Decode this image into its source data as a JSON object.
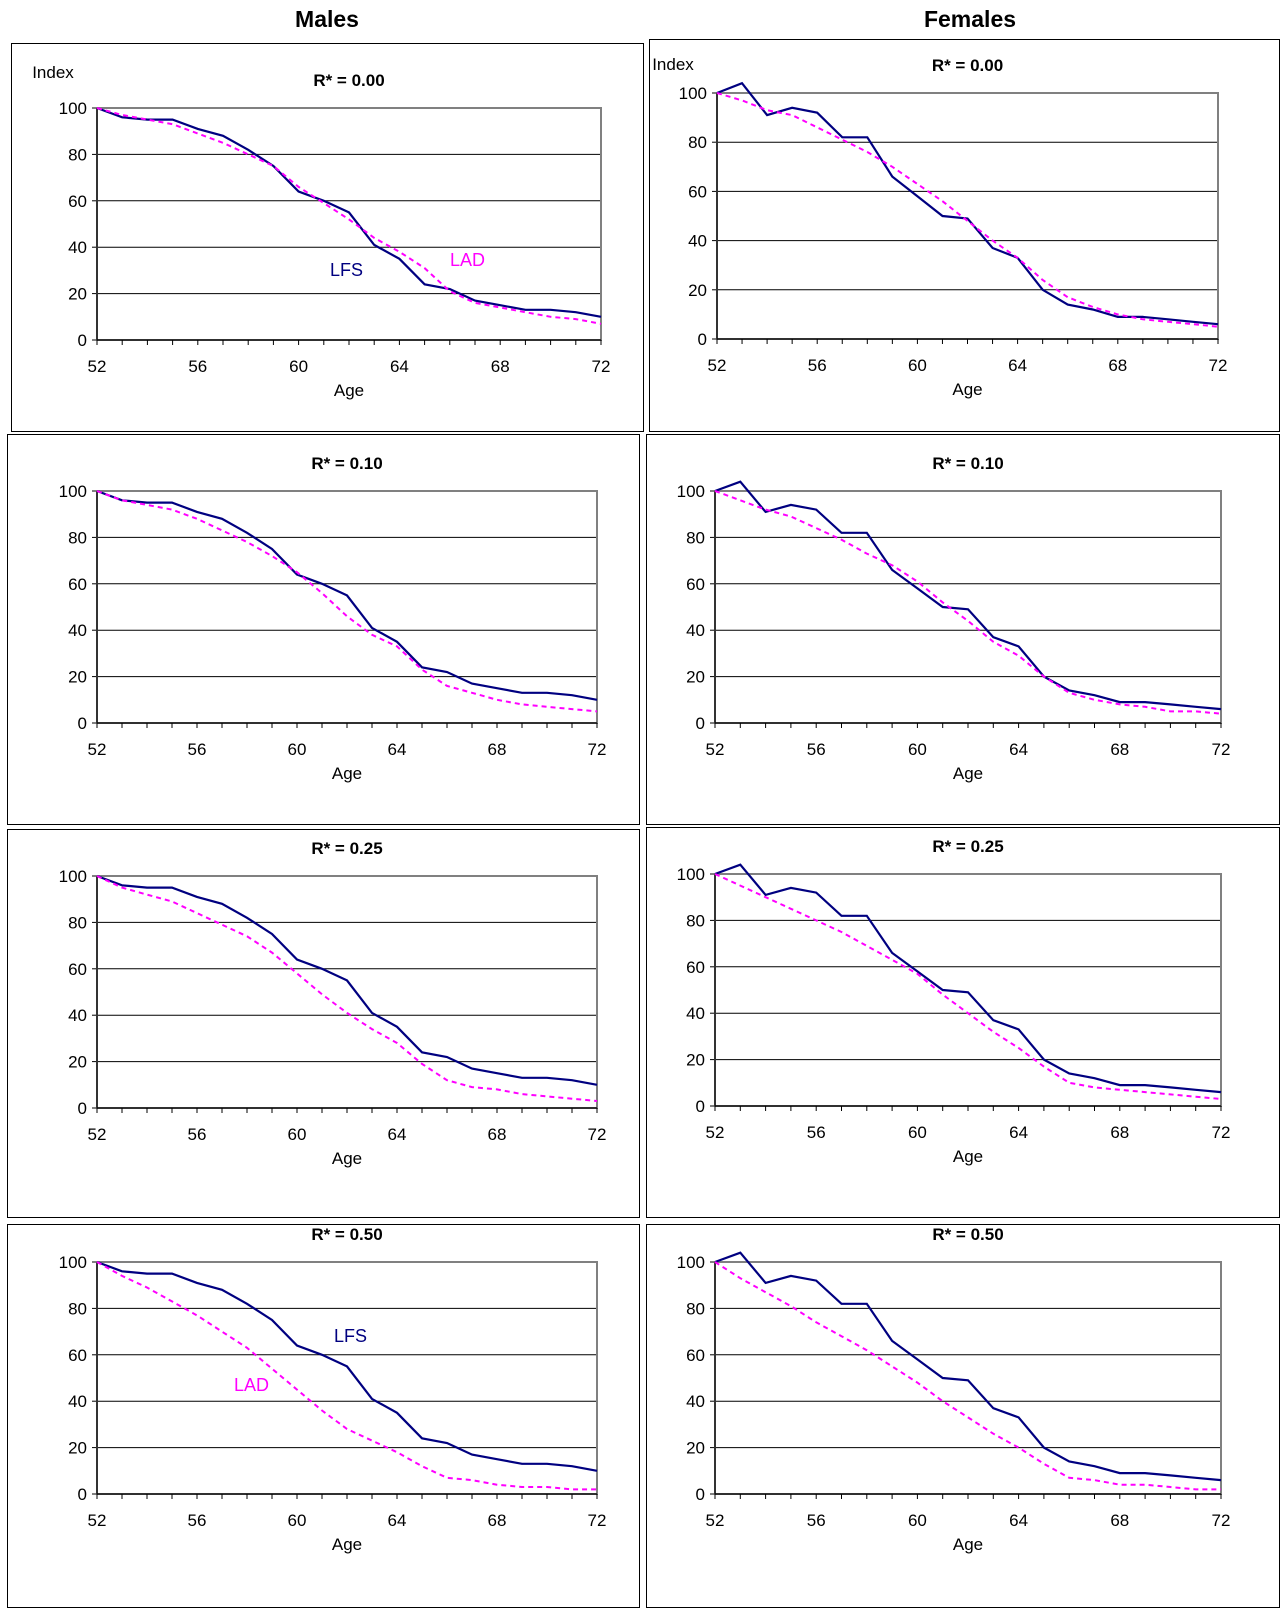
{
  "columns": {
    "left": "Males",
    "right": "Females"
  },
  "chart_data": [
    {
      "type": "line",
      "title": "R* = 0.00",
      "xlabel": "Age",
      "ylabel": "Index",
      "xlim": [
        52,
        72
      ],
      "ylim": [
        0,
        100
      ],
      "xticks": [
        52,
        56,
        60,
        64,
        68,
        72
      ],
      "yticks": [
        0,
        20,
        40,
        60,
        80,
        100
      ],
      "x": [
        52,
        53,
        54,
        55,
        56,
        57,
        58,
        59,
        60,
        61,
        62,
        63,
        64,
        65,
        66,
        67,
        68,
        69,
        70,
        71,
        72
      ],
      "series": [
        {
          "name": "LFS",
          "style": "solid",
          "color": "#000080",
          "values": [
            100,
            96,
            95,
            95,
            91,
            88,
            82,
            75,
            64,
            60,
            55,
            41,
            35,
            24,
            22,
            17,
            15,
            13,
            13,
            12,
            10
          ]
        },
        {
          "name": "LAD",
          "style": "dashed",
          "color": "#ff00ff",
          "values": [
            100,
            97,
            95,
            93,
            89,
            85,
            80,
            75,
            66,
            59,
            52,
            44,
            38,
            31,
            21,
            16,
            14,
            12,
            10,
            9,
            7
          ]
        }
      ],
      "annotations": [
        {
          "series": 0,
          "text": "LFS"
        },
        {
          "series": 1,
          "text": "LAD"
        }
      ]
    },
    {
      "type": "line",
      "title": "R* = 0.00",
      "xlabel": "Age",
      "ylabel": "Index",
      "xlim": [
        52,
        72
      ],
      "ylim": [
        0,
        100
      ],
      "xticks": [
        52,
        56,
        60,
        64,
        68,
        72
      ],
      "yticks": [
        0,
        20,
        40,
        60,
        80,
        100
      ],
      "x": [
        52,
        53,
        54,
        55,
        56,
        57,
        58,
        59,
        60,
        61,
        62,
        63,
        64,
        65,
        66,
        67,
        68,
        69,
        70,
        71,
        72
      ],
      "series": [
        {
          "style": "solid",
          "color": "#000080",
          "values": [
            100,
            104,
            91,
            94,
            92,
            82,
            82,
            66,
            58,
            50,
            49,
            37,
            33,
            20,
            14,
            12,
            9,
            9,
            8,
            7,
            6
          ]
        },
        {
          "style": "dashed",
          "color": "#ff00ff",
          "values": [
            100,
            97,
            93,
            91,
            86,
            81,
            76,
            70,
            63,
            56,
            48,
            40,
            33,
            24,
            17,
            13,
            10,
            8,
            7,
            6,
            5
          ]
        }
      ]
    },
    {
      "type": "line",
      "title": "R* = 0.10",
      "xlabel": "Age",
      "ylabel": "",
      "xlim": [
        52,
        72
      ],
      "ylim": [
        0,
        100
      ],
      "xticks": [
        52,
        56,
        60,
        64,
        68,
        72
      ],
      "yticks": [
        0,
        20,
        40,
        60,
        80,
        100
      ],
      "x": [
        52,
        53,
        54,
        55,
        56,
        57,
        58,
        59,
        60,
        61,
        62,
        63,
        64,
        65,
        66,
        67,
        68,
        69,
        70,
        71,
        72
      ],
      "series": [
        {
          "style": "solid",
          "color": "#000080",
          "values": [
            100,
            96,
            95,
            95,
            91,
            88,
            82,
            75,
            64,
            60,
            55,
            41,
            35,
            24,
            22,
            17,
            15,
            13,
            13,
            12,
            10
          ]
        },
        {
          "style": "dashed",
          "color": "#ff00ff",
          "values": [
            100,
            96,
            94,
            92,
            88,
            83,
            78,
            72,
            65,
            56,
            46,
            38,
            33,
            23,
            16,
            13,
            10,
            8,
            7,
            6,
            5
          ]
        }
      ]
    },
    {
      "type": "line",
      "title": "R* = 0.10",
      "xlabel": "Age",
      "ylabel": "",
      "xlim": [
        52,
        72
      ],
      "ylim": [
        0,
        100
      ],
      "xticks": [
        52,
        56,
        60,
        64,
        68,
        72
      ],
      "yticks": [
        0,
        20,
        40,
        60,
        80,
        100
      ],
      "x": [
        52,
        53,
        54,
        55,
        56,
        57,
        58,
        59,
        60,
        61,
        62,
        63,
        64,
        65,
        66,
        67,
        68,
        69,
        70,
        71,
        72
      ],
      "series": [
        {
          "style": "solid",
          "color": "#000080",
          "values": [
            100,
            104,
            91,
            94,
            92,
            82,
            82,
            66,
            58,
            50,
            49,
            37,
            33,
            20,
            14,
            12,
            9,
            9,
            8,
            7,
            6
          ]
        },
        {
          "style": "dashed",
          "color": "#ff00ff",
          "values": [
            100,
            96,
            92,
            89,
            84,
            79,
            73,
            68,
            61,
            52,
            44,
            35,
            29,
            20,
            13,
            10,
            8,
            7,
            5,
            5,
            4
          ]
        }
      ]
    },
    {
      "type": "line",
      "title": "R* = 0.25",
      "xlabel": "Age",
      "ylabel": "",
      "xlim": [
        52,
        72
      ],
      "ylim": [
        0,
        100
      ],
      "xticks": [
        52,
        56,
        60,
        64,
        68,
        72
      ],
      "yticks": [
        0,
        20,
        40,
        60,
        80,
        100
      ],
      "x": [
        52,
        53,
        54,
        55,
        56,
        57,
        58,
        59,
        60,
        61,
        62,
        63,
        64,
        65,
        66,
        67,
        68,
        69,
        70,
        71,
        72
      ],
      "series": [
        {
          "style": "solid",
          "color": "#000080",
          "values": [
            100,
            96,
            95,
            95,
            91,
            88,
            82,
            75,
            64,
            60,
            55,
            41,
            35,
            24,
            22,
            17,
            15,
            13,
            13,
            12,
            10
          ]
        },
        {
          "style": "dashed",
          "color": "#ff00ff",
          "values": [
            100,
            95,
            92,
            89,
            84,
            79,
            74,
            67,
            58,
            49,
            41,
            34,
            28,
            19,
            12,
            9,
            8,
            6,
            5,
            4,
            3
          ]
        }
      ]
    },
    {
      "type": "line",
      "title": "R* = 0.25",
      "xlabel": "Age",
      "ylabel": "",
      "xlim": [
        52,
        72
      ],
      "ylim": [
        0,
        100
      ],
      "xticks": [
        52,
        56,
        60,
        64,
        68,
        72
      ],
      "yticks": [
        0,
        20,
        40,
        60,
        80,
        100
      ],
      "x": [
        52,
        53,
        54,
        55,
        56,
        57,
        58,
        59,
        60,
        61,
        62,
        63,
        64,
        65,
        66,
        67,
        68,
        69,
        70,
        71,
        72
      ],
      "series": [
        {
          "style": "solid",
          "color": "#000080",
          "values": [
            100,
            104,
            91,
            94,
            92,
            82,
            82,
            66,
            58,
            50,
            49,
            37,
            33,
            20,
            14,
            12,
            9,
            9,
            8,
            7,
            6
          ]
        },
        {
          "style": "dashed",
          "color": "#ff00ff",
          "values": [
            100,
            95,
            90,
            85,
            80,
            75,
            69,
            63,
            57,
            48,
            40,
            32,
            25,
            17,
            10,
            8,
            7,
            6,
            5,
            4,
            3
          ]
        }
      ]
    },
    {
      "type": "line",
      "title": "R* = 0.50",
      "xlabel": "Age",
      "ylabel": "",
      "xlim": [
        52,
        72
      ],
      "ylim": [
        0,
        100
      ],
      "xticks": [
        52,
        56,
        60,
        64,
        68,
        72
      ],
      "yticks": [
        0,
        20,
        40,
        60,
        80,
        100
      ],
      "x": [
        52,
        53,
        54,
        55,
        56,
        57,
        58,
        59,
        60,
        61,
        62,
        63,
        64,
        65,
        66,
        67,
        68,
        69,
        70,
        71,
        72
      ],
      "series": [
        {
          "name": "LFS",
          "style": "solid",
          "color": "#000080",
          "values": [
            100,
            96,
            95,
            95,
            91,
            88,
            82,
            75,
            64,
            60,
            55,
            41,
            35,
            24,
            22,
            17,
            15,
            13,
            13,
            12,
            10
          ]
        },
        {
          "name": "LAD",
          "style": "dashed",
          "color": "#ff00ff",
          "values": [
            100,
            94,
            89,
            83,
            77,
            70,
            63,
            54,
            45,
            36,
            28,
            23,
            18,
            12,
            7,
            6,
            4,
            3,
            3,
            2,
            2
          ]
        }
      ],
      "annotations": [
        {
          "series": 0,
          "text": "LFS"
        },
        {
          "series": 1,
          "text": "LAD"
        }
      ]
    },
    {
      "type": "line",
      "title": "R* = 0.50",
      "xlabel": "Age",
      "ylabel": "",
      "xlim": [
        52,
        72
      ],
      "ylim": [
        0,
        100
      ],
      "xticks": [
        52,
        56,
        60,
        64,
        68,
        72
      ],
      "yticks": [
        0,
        20,
        40,
        60,
        80,
        100
      ],
      "x": [
        52,
        53,
        54,
        55,
        56,
        57,
        58,
        59,
        60,
        61,
        62,
        63,
        64,
        65,
        66,
        67,
        68,
        69,
        70,
        71,
        72
      ],
      "series": [
        {
          "style": "solid",
          "color": "#000080",
          "values": [
            100,
            104,
            91,
            94,
            92,
            82,
            82,
            66,
            58,
            50,
            49,
            37,
            33,
            20,
            14,
            12,
            9,
            9,
            8,
            7,
            6
          ]
        },
        {
          "style": "dashed",
          "color": "#ff00ff",
          "values": [
            100,
            93,
            87,
            81,
            74,
            68,
            62,
            55,
            48,
            40,
            33,
            26,
            20,
            13,
            7,
            6,
            4,
            4,
            3,
            2,
            2
          ]
        }
      ]
    }
  ]
}
